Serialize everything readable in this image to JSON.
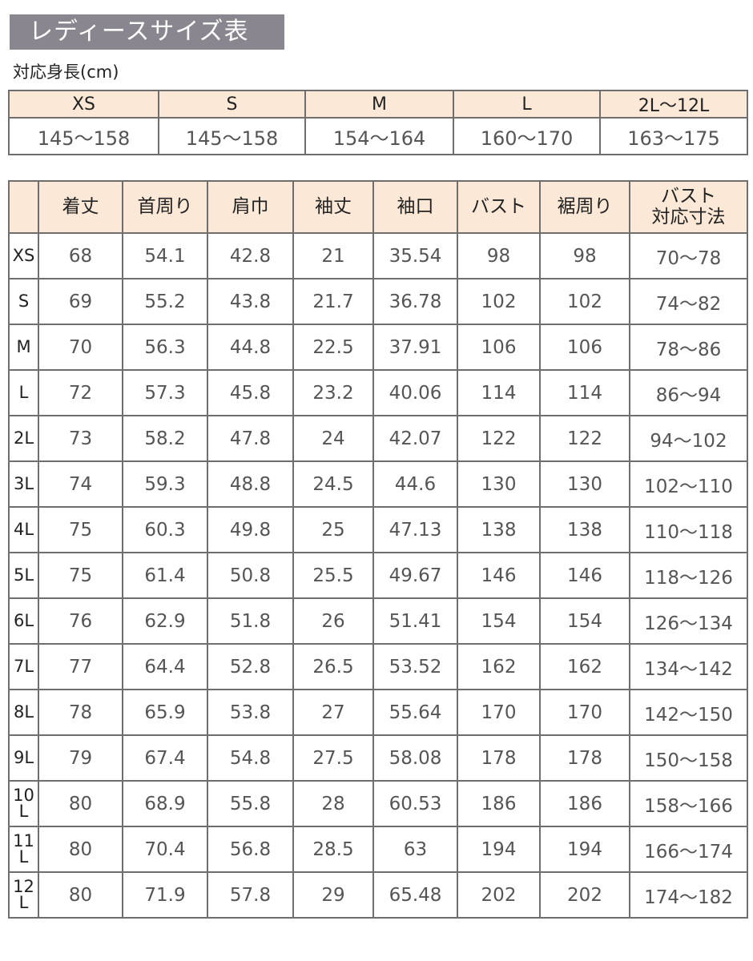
{
  "title": "レディースサイズ表",
  "height_label": "対応身長(cm)",
  "height_table": {
    "sizes": [
      "XS",
      "S",
      "M",
      "L",
      "2L〜12L"
    ],
    "heights": [
      "145〜158",
      "145〜158",
      "154〜164",
      "160〜170",
      "163〜175"
    ]
  },
  "size_table": {
    "headers": [
      "",
      "着丈",
      "首周り",
      "肩巾",
      "袖丈",
      "袖口",
      "バスト",
      "裾周り",
      "バスト\n対応寸法"
    ],
    "rows": [
      [
        "XS",
        "68",
        "54.1",
        "42.8",
        "21",
        "35.54",
        "98",
        "98",
        "70〜78"
      ],
      [
        "S",
        "69",
        "55.2",
        "43.8",
        "21.7",
        "36.78",
        "102",
        "102",
        "74〜82"
      ],
      [
        "M",
        "70",
        "56.3",
        "44.8",
        "22.5",
        "37.91",
        "106",
        "106",
        "78〜86"
      ],
      [
        "L",
        "72",
        "57.3",
        "45.8",
        "23.2",
        "40.06",
        "114",
        "114",
        "86〜94"
      ],
      [
        "2L",
        "73",
        "58.2",
        "47.8",
        "24",
        "42.07",
        "122",
        "122",
        "94〜102"
      ],
      [
        "3L",
        "74",
        "59.3",
        "48.8",
        "24.5",
        "44.6",
        "130",
        "130",
        "102〜110"
      ],
      [
        "4L",
        "75",
        "60.3",
        "49.8",
        "25",
        "47.13",
        "138",
        "138",
        "110〜118"
      ],
      [
        "5L",
        "75",
        "61.4",
        "50.8",
        "25.5",
        "49.67",
        "146",
        "146",
        "118〜126"
      ],
      [
        "6L",
        "76",
        "62.9",
        "51.8",
        "26",
        "51.41",
        "154",
        "154",
        "126〜134"
      ],
      [
        "7L",
        "77",
        "64.4",
        "52.8",
        "26.5",
        "53.52",
        "162",
        "162",
        "134〜142"
      ],
      [
        "8L",
        "78",
        "65.9",
        "53.8",
        "27",
        "55.64",
        "170",
        "170",
        "142〜150"
      ],
      [
        "9L",
        "79",
        "67.4",
        "54.8",
        "27.5",
        "58.08",
        "178",
        "178",
        "150〜158"
      ],
      [
        "10L",
        "80",
        "68.9",
        "55.8",
        "28",
        "60.53",
        "186",
        "186",
        "158〜166"
      ],
      [
        "11L",
        "80",
        "70.4",
        "56.8",
        "28.5",
        "63",
        "194",
        "194",
        "166〜174"
      ],
      [
        "12L",
        "80",
        "71.9",
        "57.8",
        "29",
        "65.48",
        "202",
        "202",
        "174〜182"
      ]
    ]
  }
}
